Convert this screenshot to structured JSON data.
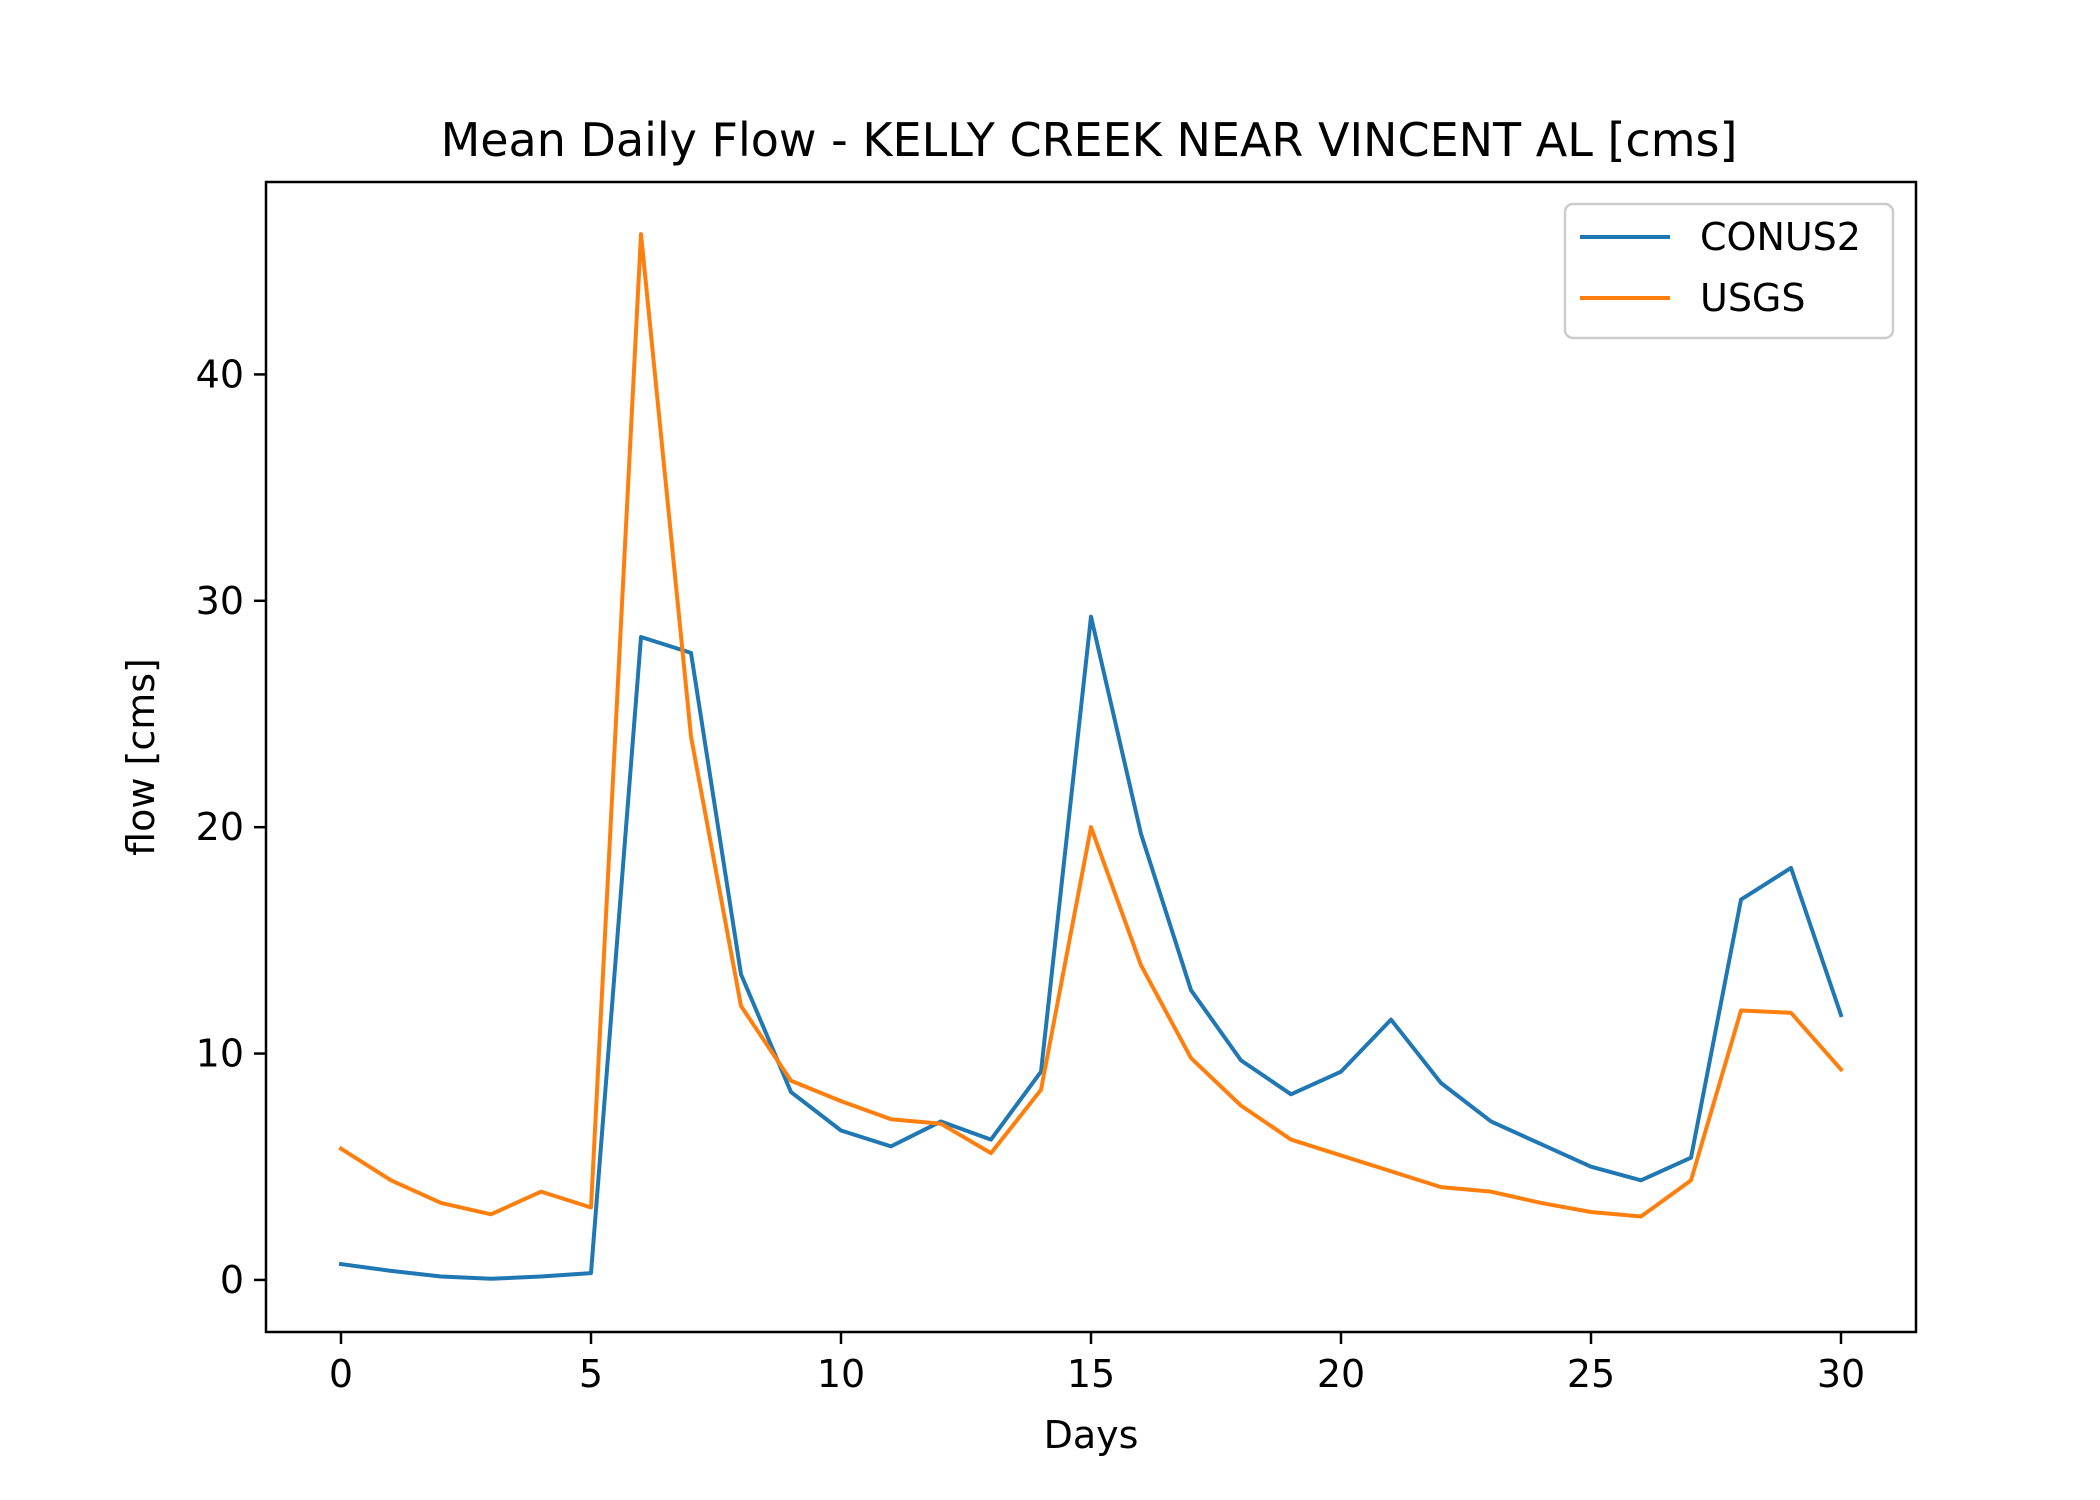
{
  "chart_data": {
    "type": "line",
    "title": "Mean Daily Flow - KELLY CREEK NEAR VINCENT AL [cms]",
    "xlabel": "Days",
    "ylabel": "flow [cms]",
    "xlim": [
      -1.5,
      31.5
    ],
    "ylim": [
      -2.3,
      48.5
    ],
    "xticks": [
      0,
      5,
      10,
      15,
      20,
      25,
      30
    ],
    "yticks": [
      0,
      10,
      20,
      30,
      40
    ],
    "grid": false,
    "legend_position": "upper right",
    "x": [
      0,
      1,
      2,
      3,
      4,
      5,
      6,
      7,
      8,
      9,
      10,
      11,
      12,
      13,
      14,
      15,
      16,
      17,
      18,
      19,
      20,
      21,
      22,
      23,
      24,
      25,
      26,
      27,
      28,
      29,
      30
    ],
    "series": [
      {
        "name": "CONUS2",
        "color": "#1f77b4",
        "values": [
          0.7,
          0.4,
          0.15,
          0.05,
          0.15,
          0.3,
          28.4,
          27.7,
          13.5,
          8.3,
          6.6,
          5.9,
          7.0,
          6.2,
          9.2,
          29.3,
          19.7,
          12.8,
          9.7,
          8.2,
          9.2,
          11.5,
          8.7,
          7.0,
          6.0,
          5.0,
          4.4,
          5.4,
          16.8,
          18.2,
          11.7
        ]
      },
      {
        "name": "USGS",
        "color": "#ff7f0e",
        "values": [
          5.8,
          4.4,
          3.4,
          2.9,
          3.9,
          3.2,
          46.2,
          24.0,
          12.1,
          8.8,
          7.9,
          7.1,
          6.9,
          5.6,
          8.4,
          20.0,
          13.9,
          9.8,
          7.7,
          6.2,
          5.5,
          4.8,
          4.1,
          3.9,
          3.4,
          3.0,
          2.8,
          4.4,
          11.9,
          11.8,
          9.3
        ]
      }
    ]
  }
}
